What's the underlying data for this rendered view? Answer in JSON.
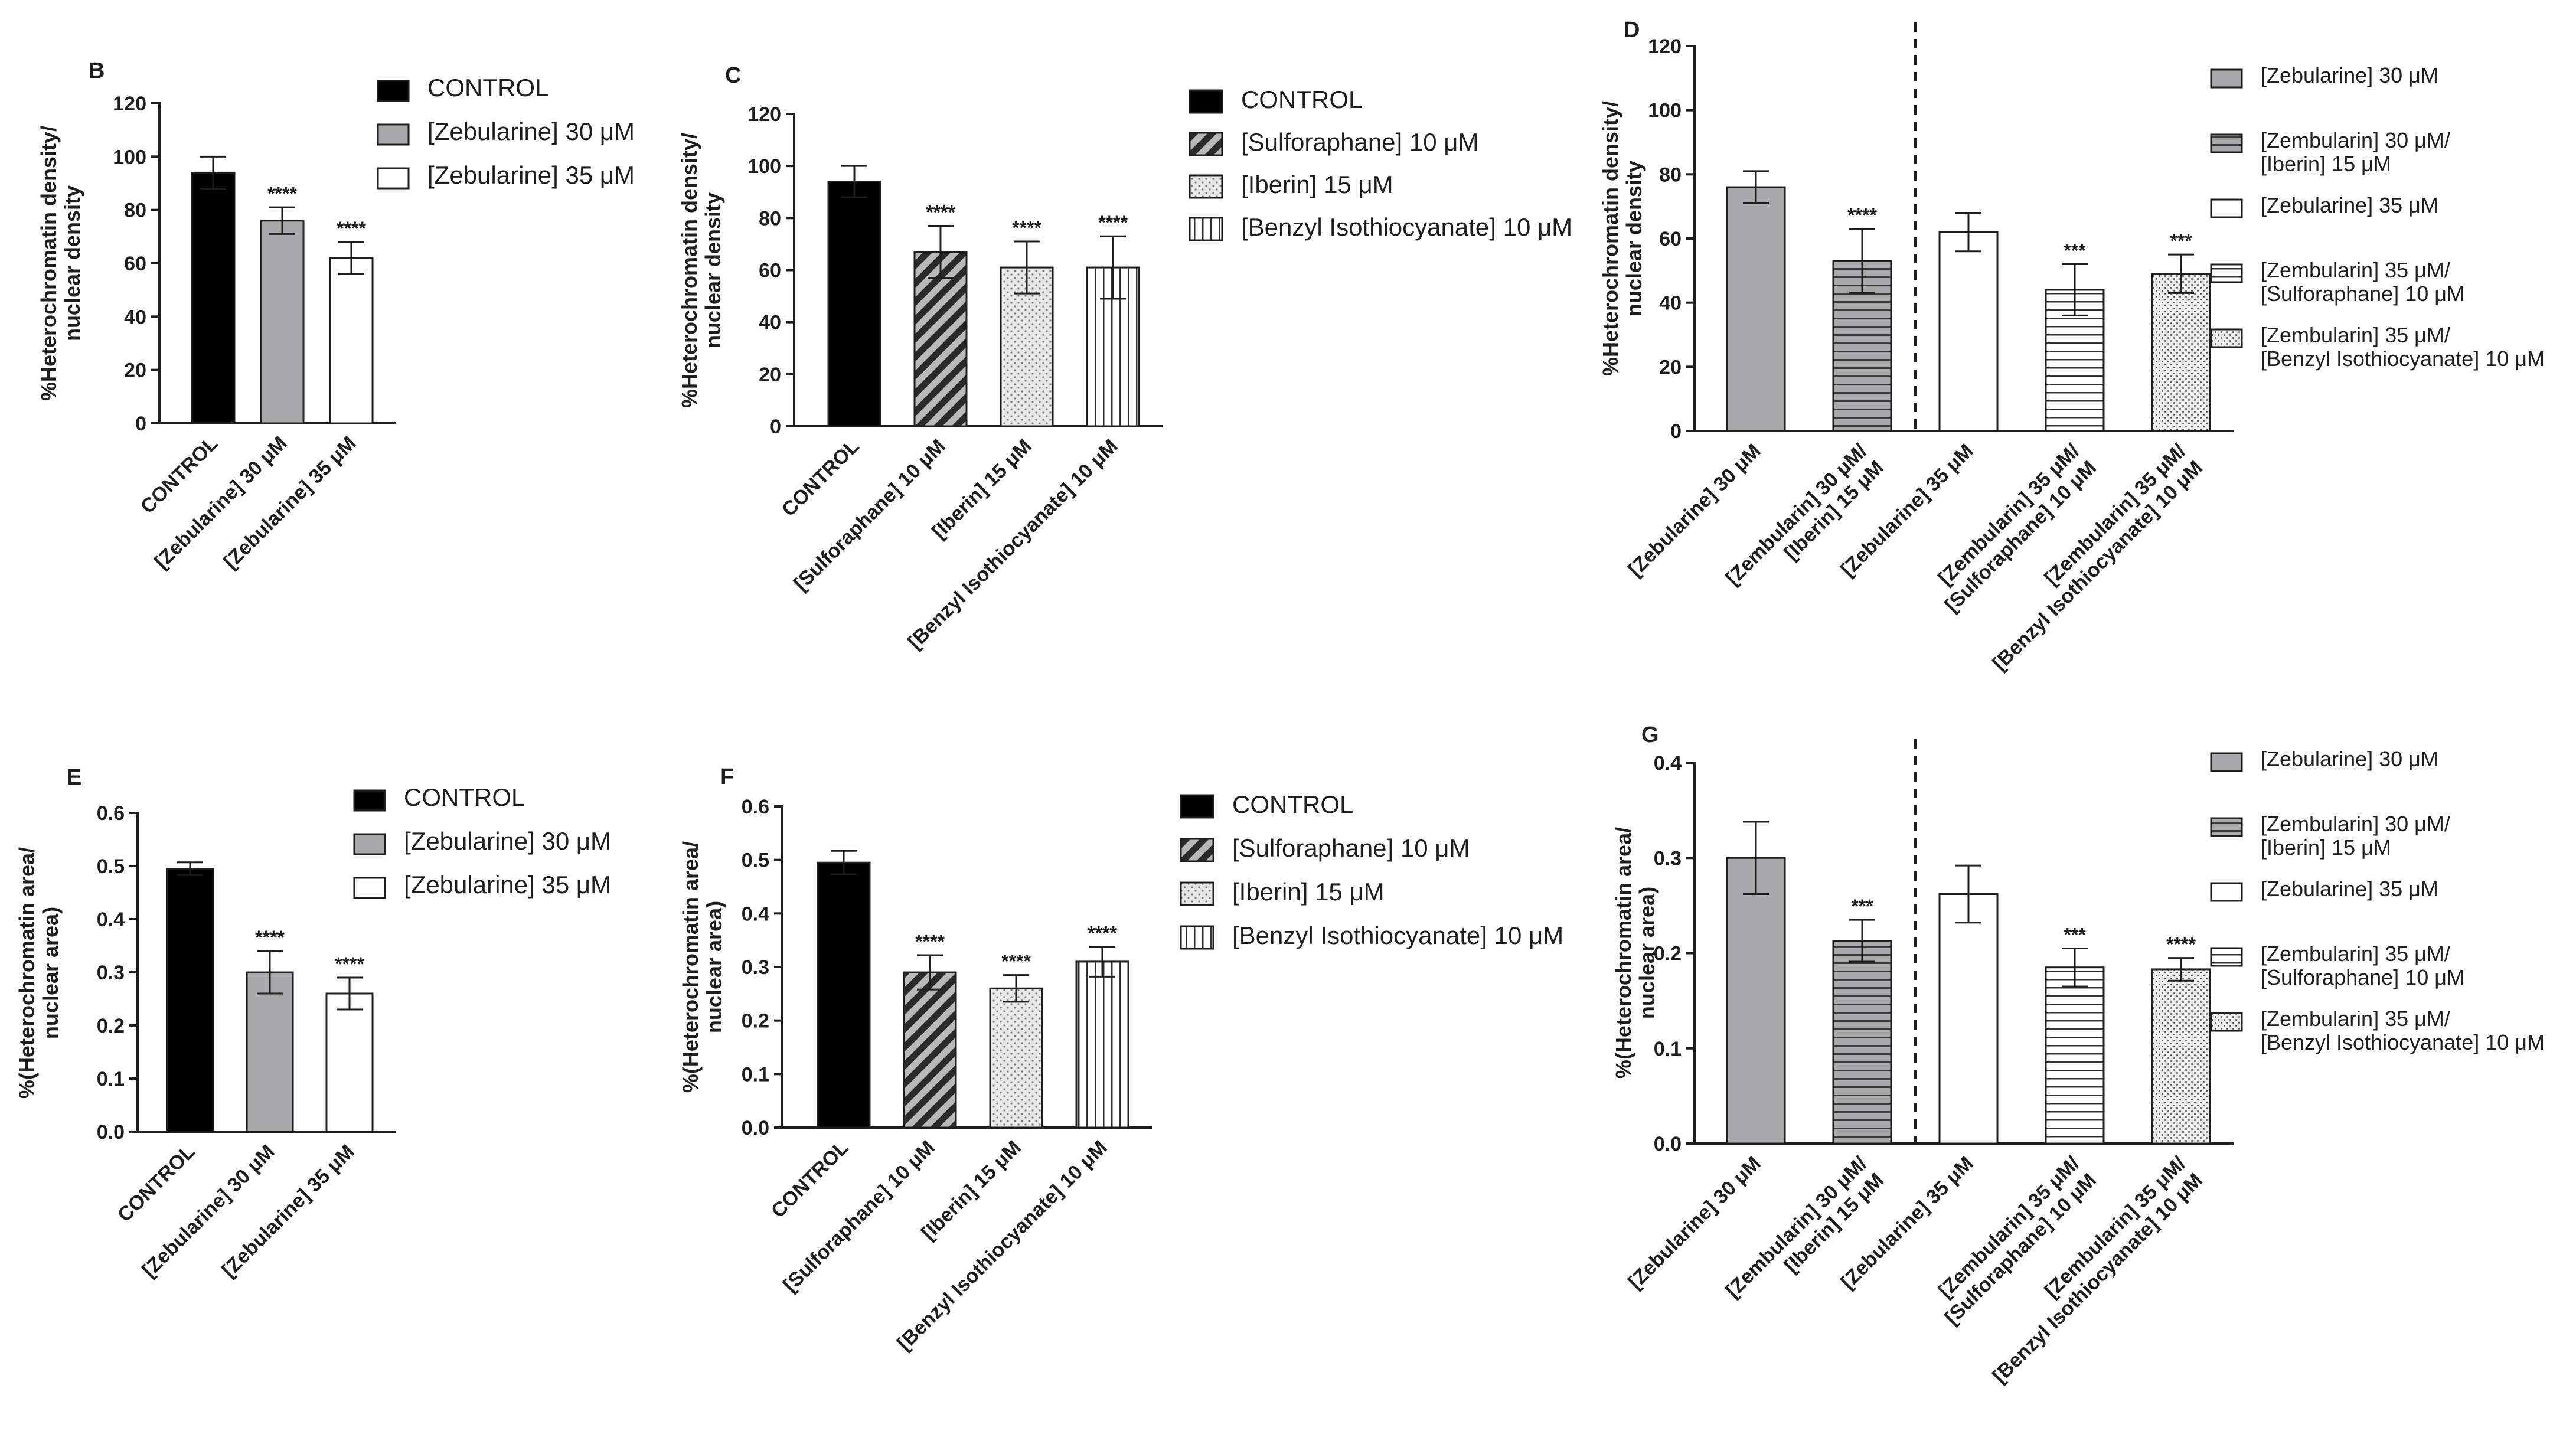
{
  "figure": {
    "colors": {
      "ink": "#1e1e1e",
      "control": "#000000",
      "gray": "#a9a9ab",
      "white": "#ffffff",
      "stipple": "#e6e6e6"
    },
    "icons": [
      "hatch-diagonal",
      "stipple-dots",
      "vertical-lines",
      "horizontal-lines",
      "dense-dots"
    ]
  },
  "chart_data": [
    {
      "panel": "B",
      "type": "bar",
      "title": "",
      "ylabel": "%Heterochromatin density/ nuclear density",
      "ylabel_lines": [
        "%Heterochromatin density/",
        "nuclear density"
      ],
      "xlabel": "",
      "ylim": [
        0,
        120
      ],
      "yticks": [
        0,
        20,
        40,
        60,
        80,
        100,
        120
      ],
      "categories": [
        "CONTROL",
        "[Zebularine] 30 μM",
        "[Zebularine] 35 μM"
      ],
      "values": [
        94,
        76,
        62
      ],
      "errors": [
        6,
        5,
        6
      ],
      "significance": [
        "",
        "****",
        "****"
      ],
      "patterns": [
        "control",
        "gray",
        "white"
      ],
      "legend": [
        "CONTROL",
        "[Zebularine] 30 μM",
        "[Zebularine] 35 μM"
      ],
      "separator_after": null
    },
    {
      "panel": "C",
      "type": "bar",
      "title": "",
      "ylabel": "%Heterochromatin density/ nuclear density",
      "ylabel_lines": [
        "%Heterochromatin density/",
        "nuclear density"
      ],
      "xlabel": "",
      "ylim": [
        0,
        120
      ],
      "yticks": [
        0,
        20,
        40,
        60,
        80,
        100,
        120
      ],
      "categories": [
        "CONTROL",
        "[Sulforaphane] 10 μM",
        "[Iberin] 15 μM",
        "[Benzyl Isothiocyanate] 10 μM"
      ],
      "values": [
        94,
        67,
        61,
        61
      ],
      "errors": [
        6,
        10,
        10,
        12
      ],
      "significance": [
        "",
        "****",
        "****",
        "****"
      ],
      "patterns": [
        "control",
        "diag",
        "stipple",
        "vlines"
      ],
      "legend": [
        "CONTROL",
        "[Sulforaphane] 10 μM",
        "[Iberin] 15 μM",
        "[Benzyl Isothiocyanate] 10 μM"
      ],
      "separator_after": null
    },
    {
      "panel": "D",
      "type": "bar",
      "title": "",
      "ylabel": "%Heterochromatin density/ nuclear density",
      "ylabel_lines": [
        "%Heterochromatin density/",
        "nuclear density"
      ],
      "xlabel": "",
      "ylim": [
        0,
        120
      ],
      "yticks": [
        0,
        20,
        40,
        60,
        80,
        100,
        120
      ],
      "categories": [
        "[Zebularine] 30 μM",
        "[Zembularin] 30 μM/ [Iberin] 15 μM",
        "[Zebularine] 35 μM",
        "[Zembularin] 35 μM/ [Sulforaphane] 10 μM",
        "[Zembularin] 35 μM/ [Benzyl Isothiocyanate] 10 μM"
      ],
      "values": [
        76,
        53,
        62,
        44,
        49
      ],
      "errors": [
        5,
        10,
        6,
        8,
        6
      ],
      "significance": [
        "",
        "****",
        "",
        "***",
        "***"
      ],
      "patterns": [
        "gray",
        "hlines-gray",
        "white",
        "hlines",
        "dots"
      ],
      "legend": [
        "[Zebularine] 30 μM",
        "[Zembularin] 30 μM/ [Iberin] 15 μM",
        "[Zebularine] 35 μM",
        "[Zembularin] 35 μM/ [Sulforaphane] 10 μM",
        "[Zembularin] 35 μM/ [Benzyl Isothiocyanate] 10 μM"
      ],
      "separator_after": 1
    },
    {
      "panel": "E",
      "type": "bar",
      "title": "",
      "ylabel": "%(Heterochromatin area/ nuclear area)",
      "ylabel_lines": [
        "%(Heterochromatin area/",
        "nuclear area)"
      ],
      "xlabel": "",
      "ylim": [
        0,
        0.6
      ],
      "yticks": [
        0.0,
        0.1,
        0.2,
        0.3,
        0.4,
        0.5,
        0.6
      ],
      "categories": [
        "CONTROL",
        "[Zebularine] 30 μM",
        "[Zebularine] 35 μM"
      ],
      "values": [
        0.495,
        0.3,
        0.26
      ],
      "errors": [
        0.012,
        0.04,
        0.03
      ],
      "significance": [
        "",
        "****",
        "****"
      ],
      "patterns": [
        "control",
        "gray",
        "white"
      ],
      "legend": [
        "CONTROL",
        "[Zebularine] 30 μM",
        "[Zebularine] 35 μM"
      ],
      "separator_after": null
    },
    {
      "panel": "F",
      "type": "bar",
      "title": "",
      "ylabel": "%(Heterochromatin area/ nuclear area)",
      "ylabel_lines": [
        "%(Heterochromatin area/",
        "nuclear area)"
      ],
      "xlabel": "",
      "ylim": [
        0,
        0.6
      ],
      "yticks": [
        0.0,
        0.1,
        0.2,
        0.3,
        0.4,
        0.5,
        0.6
      ],
      "categories": [
        "CONTROL",
        "[Sulforaphane] 10 μM",
        "[Iberin] 15 μM",
        "[Benzyl Isothiocyanate] 10 μM"
      ],
      "values": [
        0.495,
        0.29,
        0.26,
        0.31
      ],
      "errors": [
        0.022,
        0.032,
        0.025,
        0.028
      ],
      "significance": [
        "",
        "****",
        "****",
        "****"
      ],
      "patterns": [
        "control",
        "diag",
        "stipple",
        "vlines"
      ],
      "legend": [
        "CONTROL",
        "[Sulforaphane] 10 μM",
        "[Iberin] 15 μM",
        "[Benzyl Isothiocyanate] 10 μM"
      ],
      "separator_after": null
    },
    {
      "panel": "G",
      "type": "bar",
      "title": "",
      "ylabel": "%(Heterochromatin area/ nuclear area)",
      "ylabel_lines": [
        "%(Heterochromatin area/",
        "nuclear area)"
      ],
      "xlabel": "",
      "ylim": [
        0,
        0.4
      ],
      "yticks": [
        0.0,
        0.1,
        0.2,
        0.3,
        0.4
      ],
      "categories": [
        "[Zebularine] 30 μM",
        "[Zembularin] 30 μM/ [Iberin] 15 μM",
        "[Zebularine] 35 μM",
        "[Zembularin] 35 μM/ [Sulforaphane] 10 μM",
        "[Zembularin] 35 μM/ [Benzyl Isothiocyanate] 10 μM"
      ],
      "values": [
        0.3,
        0.213,
        0.262,
        0.185,
        0.183
      ],
      "errors": [
        0.038,
        0.022,
        0.03,
        0.02,
        0.012
      ],
      "significance": [
        "",
        "***",
        "",
        "***",
        "****"
      ],
      "patterns": [
        "gray",
        "hlines-gray",
        "white",
        "hlines",
        "dots"
      ],
      "legend": [
        "[Zebularine] 30 μM",
        "[Zembularin] 30 μM/ [Iberin] 15 μM",
        "[Zebularine] 35 μM",
        "[Zembularin] 35 μM/ [Sulforaphane] 10 μM",
        "[Zembularin] 35 μM/ [Benzyl Isothiocyanate] 10 μM"
      ],
      "separator_after": 1
    }
  ]
}
